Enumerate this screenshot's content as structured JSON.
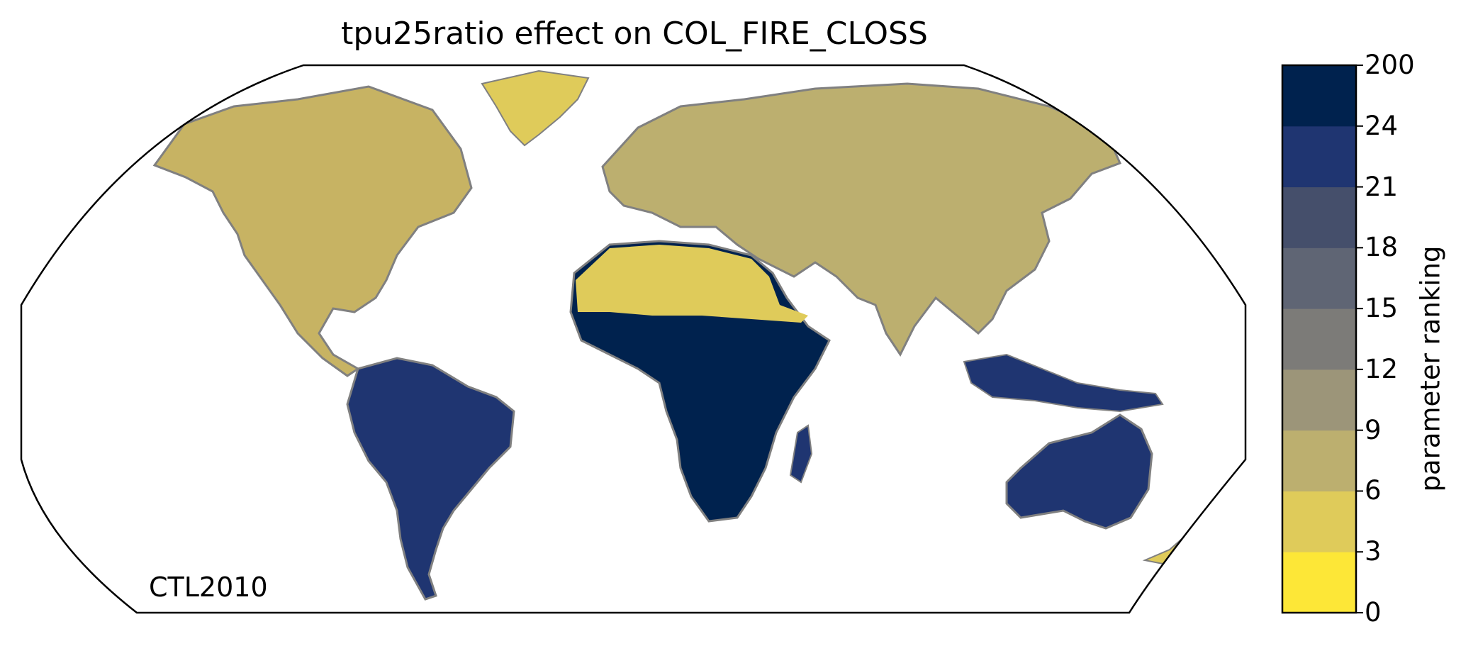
{
  "title": "tpu25ratio effect on COL_FIRE_CLOSS",
  "run_label": "CTL2010",
  "colorbar": {
    "label": "parameter ranking",
    "ticks": [
      "0",
      "3",
      "6",
      "9",
      "12",
      "15",
      "18",
      "21",
      "24",
      "200"
    ],
    "colors": [
      "#fde737",
      "#dfcb5a",
      "#bcaf6f",
      "#9c9579",
      "#7c7b78",
      "#5f6574",
      "#454f6b",
      "#1f3571",
      "#00224e"
    ]
  },
  "map": {
    "projection": "Robinson",
    "ocean_color": "#ffffff",
    "coastline_color": "#808080"
  }
}
